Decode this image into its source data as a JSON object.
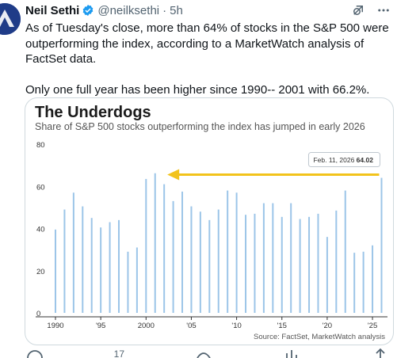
{
  "tweet": {
    "author_name": "Neil Sethi",
    "handle": "@neilksethi",
    "separator": "·",
    "time": "5h",
    "text_para1": "As of Tuesday's close, more than 64% of stocks in the S&P 500 were outperforming the index, according to a MarketWatch analysis of FactSet data.",
    "text_para2": "Only one full year has been higher since 1990-- 2001 with 66.2%.",
    "colors": {
      "verified": "#1d9bf0",
      "muted": "#536471"
    }
  },
  "media": {
    "chart_title": "The Underdogs",
    "chart_subtitle": "Share of S&P 500 stocks outperforming the index has jumped in early 2026",
    "source": "Source: FactSet, MarketWatch analysis",
    "callout": {
      "date_label": "Feb. 11, 2026",
      "value_label": "64.02"
    }
  },
  "chart_data": {
    "type": "bar",
    "title": "The Underdogs",
    "subtitle": "Share of S&P 500 stocks outperforming the index has jumped in early 2026",
    "ylim": [
      0,
      80
    ],
    "y_ticks": [
      0,
      20,
      40,
      60,
      80
    ],
    "y_tick_labels": [
      "0",
      "20",
      "40",
      "60",
      "80"
    ],
    "x_tick_years": [
      1990,
      1995,
      2000,
      2005,
      2010,
      2015,
      2020,
      2025
    ],
    "x_tick_labels": [
      "1990",
      "'95",
      "2000",
      "'05",
      "'10",
      "'15",
      "'20",
      "'25"
    ],
    "years": [
      1990,
      1991,
      1992,
      1993,
      1994,
      1995,
      1996,
      1997,
      1998,
      1999,
      2000,
      2001,
      2002,
      2003,
      2004,
      2005,
      2006,
      2007,
      2008,
      2009,
      2010,
      2011,
      2012,
      2013,
      2014,
      2015,
      2016,
      2017,
      2018,
      2019,
      2020,
      2021,
      2022,
      2023,
      2024,
      2025,
      2026
    ],
    "values": [
      39.5,
      49,
      57,
      50.5,
      45,
      40.5,
      43,
      44,
      29,
      31,
      63.5,
      66.2,
      61,
      53,
      57.5,
      50.5,
      48,
      44,
      49,
      58,
      57,
      46.5,
      47,
      52,
      52,
      45.5,
      52,
      44.5,
      45.5,
      47,
      36,
      48.5,
      58,
      28.5,
      29,
      32,
      64.02
    ],
    "bar_color": "#9cc5e8",
    "arrow_color": "#f2c31b",
    "grid": false,
    "source": "Source: FactSet, MarketWatch analysis"
  },
  "actions": {
    "reply_count": "",
    "retweet_count": "17"
  }
}
